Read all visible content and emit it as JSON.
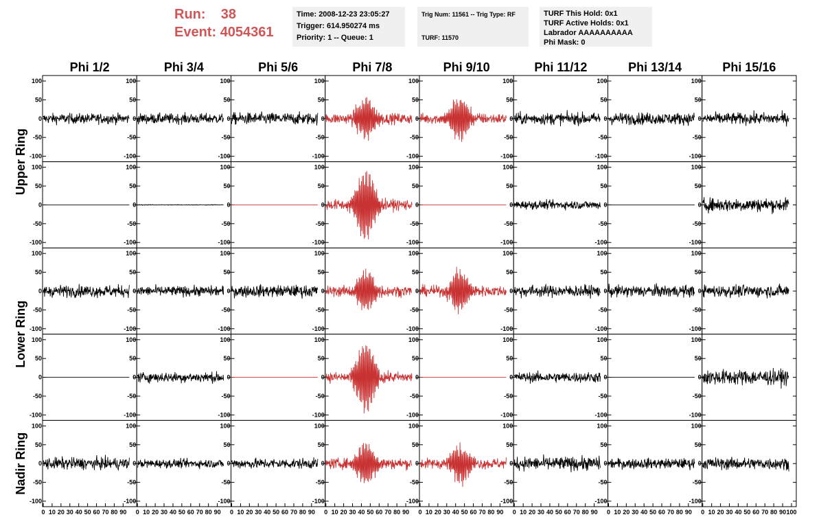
{
  "header": {
    "run_label": "Run:",
    "run_value": "38",
    "event_label": "Event:",
    "event_value": "4054361"
  },
  "info_panel_1": {
    "time": "Time: 2008-12-23 23:05:27",
    "trigger": "Trigger: 614.950274 ms",
    "priority": "Priority: 1 -- Queue: 1"
  },
  "info_panel_2": {
    "trig": "Trig Num: 11561 -- Trig Type: RF",
    "turf": "TURF: 11570"
  },
  "info_panel_3": {
    "hold": "TURF This Hold: 0x1",
    "active": "TURF Active Holds: 0x1",
    "labrador": "Labrador AAAAAAAAAA",
    "phi_mask": "Phi Mask: 0"
  },
  "chart_data": {
    "type": "line",
    "columns": [
      "Phi 1/2",
      "Phi 3/4",
      "Phi 5/6",
      "Phi 7/8",
      "Phi 9/10",
      "Phi 11/12",
      "Phi 13/14",
      "Phi 15/16"
    ],
    "ring_labels": [
      "Upper Ring",
      "Lower Ring",
      "Nadir Ring"
    ],
    "rows": 5,
    "ylim": [
      -100,
      100
    ],
    "yticks": [
      -100,
      -50,
      0,
      50,
      100
    ],
    "xlim": [
      0,
      100
    ],
    "xticks": [
      0,
      10,
      20,
      30,
      40,
      50,
      60,
      70,
      80,
      90,
      100
    ],
    "colors": {
      "normal": "#000000",
      "triggered": "#c83232"
    },
    "panels": [
      [
        {
          "kind": "noise",
          "amp": 12,
          "color": "normal"
        },
        {
          "kind": "noise",
          "amp": 12,
          "color": "normal"
        },
        {
          "kind": "noise",
          "amp": 14,
          "color": "normal"
        },
        {
          "kind": "pulse",
          "amp": 55,
          "color": "triggered"
        },
        {
          "kind": "pulse",
          "amp": 60,
          "color": "triggered"
        },
        {
          "kind": "noise",
          "amp": 14,
          "color": "normal"
        },
        {
          "kind": "noise",
          "amp": 14,
          "color": "normal"
        },
        {
          "kind": "noise",
          "amp": 14,
          "color": "normal"
        }
      ],
      [
        {
          "kind": "flat",
          "amp": 0,
          "color": "normal"
        },
        {
          "kind": "flat",
          "amp": 2,
          "color": "normal"
        },
        {
          "kind": "flat",
          "amp": 0,
          "color": "triggered"
        },
        {
          "kind": "pulse",
          "amp": 95,
          "color": "triggered"
        },
        {
          "kind": "flat",
          "amp": 0,
          "color": "triggered"
        },
        {
          "kind": "noise",
          "amp": 10,
          "color": "normal"
        },
        {
          "kind": "flat",
          "amp": 0,
          "color": "normal"
        },
        {
          "kind": "noise",
          "amp": 16,
          "color": "normal"
        }
      ],
      [
        {
          "kind": "noise",
          "amp": 14,
          "color": "normal"
        },
        {
          "kind": "noise",
          "amp": 12,
          "color": "normal"
        },
        {
          "kind": "noise",
          "amp": 14,
          "color": "normal"
        },
        {
          "kind": "pulse",
          "amp": 55,
          "color": "triggered"
        },
        {
          "kind": "pulse",
          "amp": 55,
          "color": "triggered"
        },
        {
          "kind": "noise",
          "amp": 14,
          "color": "normal"
        },
        {
          "kind": "noise",
          "amp": 14,
          "color": "normal"
        },
        {
          "kind": "noise",
          "amp": 14,
          "color": "normal"
        }
      ],
      [
        {
          "kind": "flat",
          "amp": 0,
          "color": "normal"
        },
        {
          "kind": "noise",
          "amp": 12,
          "color": "normal"
        },
        {
          "kind": "flat",
          "amp": 0,
          "color": "triggered"
        },
        {
          "kind": "pulse",
          "amp": 95,
          "color": "triggered"
        },
        {
          "kind": "flat",
          "amp": 0,
          "color": "triggered"
        },
        {
          "kind": "noise",
          "amp": 12,
          "color": "normal"
        },
        {
          "kind": "flat",
          "amp": 0,
          "color": "normal"
        },
        {
          "kind": "noise",
          "amp": 18,
          "color": "normal"
        }
      ],
      [
        {
          "kind": "noise",
          "amp": 14,
          "color": "normal"
        },
        {
          "kind": "noise",
          "amp": 10,
          "color": "normal"
        },
        {
          "kind": "noise",
          "amp": 12,
          "color": "normal"
        },
        {
          "kind": "pulse",
          "amp": 55,
          "color": "triggered"
        },
        {
          "kind": "pulse",
          "amp": 50,
          "color": "triggered"
        },
        {
          "kind": "noise",
          "amp": 16,
          "color": "normal"
        },
        {
          "kind": "noise",
          "amp": 12,
          "color": "normal"
        },
        {
          "kind": "noise",
          "amp": 14,
          "color": "normal"
        }
      ]
    ]
  }
}
